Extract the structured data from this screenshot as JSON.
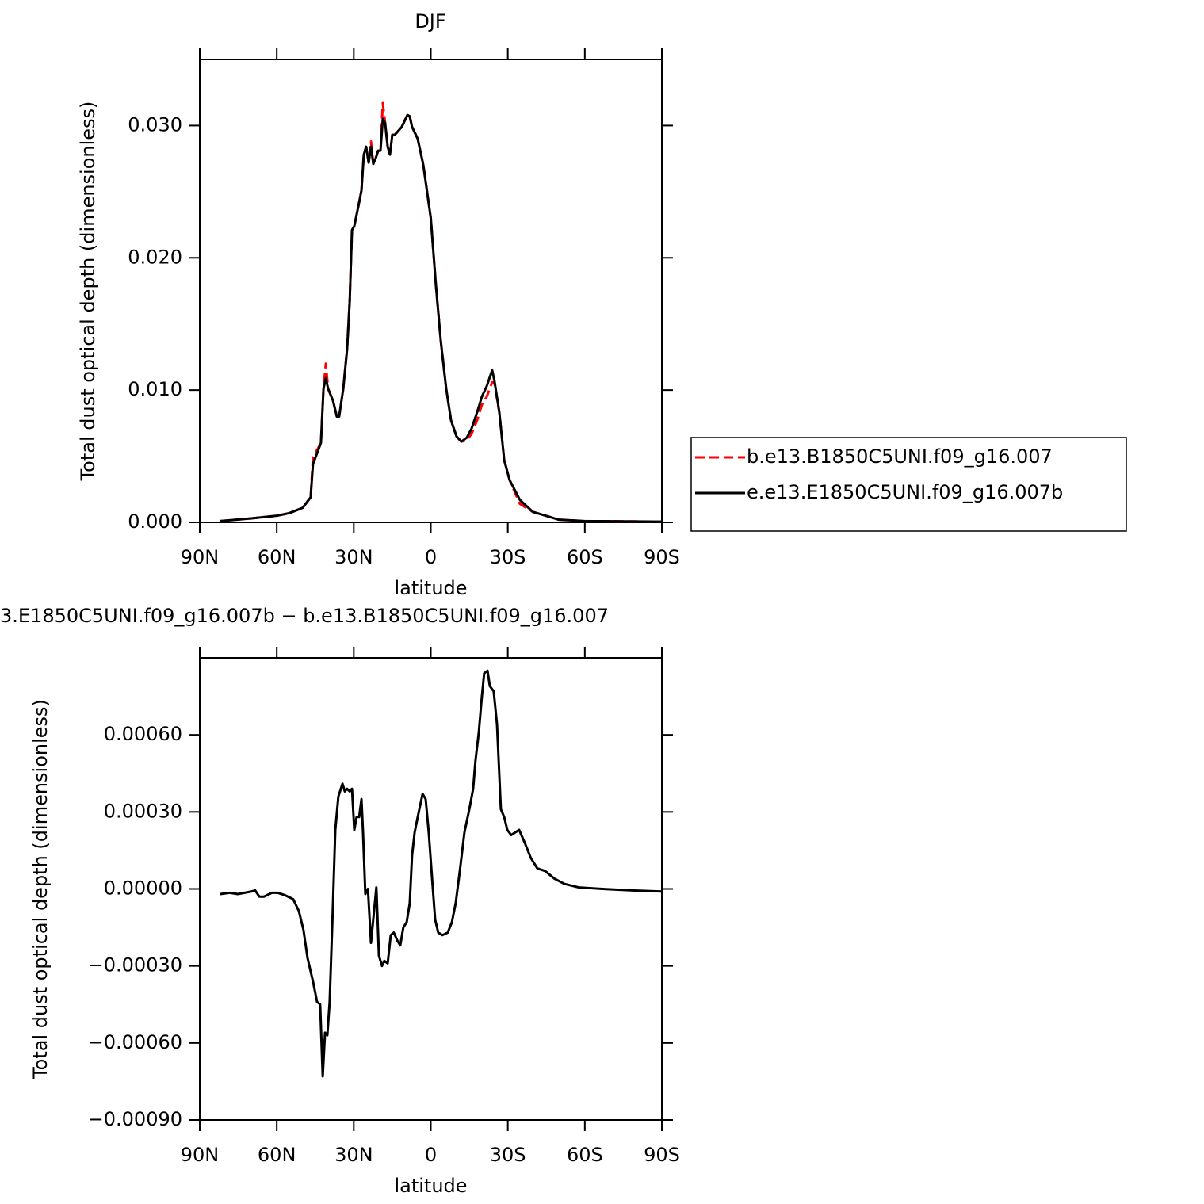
{
  "chart_data": [
    {
      "type": "line",
      "title": "DJF",
      "xlabel": "latitude",
      "ylabel": "Total dust optical depth (dimensionless)",
      "x": [
        82,
        69.9,
        60,
        55.1,
        49.9,
        46.8,
        45.9,
        42.8,
        41.8,
        40.9,
        40,
        38.1,
        36.6,
        35.7,
        34.1,
        32.6,
        31.6,
        30.7,
        29.8,
        27.9,
        27,
        26.1,
        25.2,
        24.2,
        23.3,
        22.4,
        21.5,
        20.5,
        19.6,
        18.7,
        17.8,
        16.8,
        15.9,
        15,
        14.1,
        13.1,
        11.3,
        9.1,
        8.2,
        7.3,
        5.1,
        2.9,
        0,
        -2,
        -3.9,
        -6,
        -7.9,
        -10,
        -11.9,
        -14,
        -15.9,
        -18,
        -19.9,
        -21.8,
        -23.9,
        -24.8,
        -26.7,
        -28.6,
        -30.7,
        -34.7,
        -39.7,
        -49.9,
        -60,
        -90
      ],
      "series": [
        {
          "name": "b.e13.B1850C5UNI.f09_g16.007",
          "color": "#ff0000",
          "dashed": true,
          "values": [
            0.0001,
            0.0003,
            0.0005,
            0.0007,
            0.0011,
            0.0019,
            0.0049,
            0.006,
            0.0101,
            0.012,
            0.0101,
            0.0092,
            0.008,
            0.008,
            0.0101,
            0.0131,
            0.0167,
            0.0221,
            0.0224,
            0.0242,
            0.0251,
            0.0278,
            0.0284,
            0.0272,
            0.0288,
            0.0271,
            0.0275,
            0.0281,
            0.0281,
            0.0317,
            0.0302,
            0.0284,
            0.0278,
            0.0293,
            0.0293,
            0.0295,
            0.0299,
            0.0308,
            0.0307,
            0.0299,
            0.029,
            0.027,
            0.023,
            0.0179,
            0.0137,
            0.0101,
            0.0077,
            0.0065,
            0.0061,
            0.0062,
            0.0067,
            0.0077,
            0.0089,
            0.0095,
            0.0106,
            0.0105,
            0.0083,
            0.0047,
            0.0032,
            0.0014,
            0.0008,
            0.0002,
            0.0001,
            5e-05
          ]
        },
        {
          "name": "e.e13.E1850C5UNI.f09_g16.007b",
          "color": "#000000",
          "dashed": false,
          "values": [
            0.0001,
            0.0003,
            0.0005,
            0.0007,
            0.0011,
            0.0019,
            0.0044,
            0.006,
            0.0101,
            0.0109,
            0.0101,
            0.0092,
            0.008,
            0.008,
            0.0101,
            0.0131,
            0.0167,
            0.0221,
            0.0224,
            0.0242,
            0.0251,
            0.0278,
            0.0284,
            0.0272,
            0.0284,
            0.0271,
            0.0275,
            0.0281,
            0.0281,
            0.0305,
            0.0302,
            0.0284,
            0.0278,
            0.0293,
            0.0293,
            0.0295,
            0.0299,
            0.0308,
            0.0307,
            0.0299,
            0.029,
            0.027,
            0.023,
            0.0179,
            0.0137,
            0.0101,
            0.0077,
            0.0065,
            0.0061,
            0.0064,
            0.0071,
            0.0083,
            0.0095,
            0.0103,
            0.0115,
            0.0107,
            0.0083,
            0.0047,
            0.0032,
            0.0017,
            0.0008,
            0.0002,
            0.0001,
            5e-05
          ]
        }
      ],
      "xlim": [
        90,
        -90
      ],
      "xticks": [
        {
          "value": 90,
          "label": "90N"
        },
        {
          "value": 60,
          "label": "60N"
        },
        {
          "value": 30,
          "label": "30N"
        },
        0,
        {
          "value": -30,
          "label": "30S"
        },
        {
          "value": -60,
          "label": "60S"
        },
        {
          "value": -90,
          "label": "90S"
        }
      ],
      "ylim": [
        0,
        0.035
      ],
      "yticks": [
        {
          "value": 0,
          "label": "0.000"
        },
        {
          "value": 0.01,
          "label": "0.010"
        },
        {
          "value": 0.02,
          "label": "0.020"
        },
        {
          "value": 0.03,
          "label": "0.030"
        }
      ],
      "legend": "right"
    },
    {
      "type": "line",
      "title": "3.E1850C5UNI.f09_g16.007b − b.e13.B1850C5UNI.f09_g16.007",
      "xlabel": "latitude",
      "ylabel": "Total dust optical depth (dimensionless)",
      "x": [
        82,
        78.3,
        75.2,
        69.9,
        68.4,
        66.8,
        65,
        61.9,
        59.7,
        56.7,
        53.6,
        51.4,
        49.6,
        48,
        45.9,
        44.3,
        43.1,
        42.1,
        41.2,
        40.3,
        39.4,
        38.1,
        37.2,
        36,
        34.4,
        33.5,
        32.6,
        31.6,
        30.7,
        29.8,
        28.9,
        27.9,
        27,
        26.4,
        25.5,
        24.5,
        23.3,
        22.1,
        21.2,
        20.2,
        19,
        18.1,
        16.8,
        15.6,
        14.4,
        13.1,
        11.9,
        10.7,
        9.4,
        8.2,
        7.3,
        6.3,
        5.1,
        3.2,
        2,
        0.8,
        -0.5,
        -1.7,
        -2.9,
        -4.5,
        -6.6,
        -8.2,
        -9.7,
        -11.3,
        -13.1,
        -15,
        -16.5,
        -17.4,
        -18.7,
        -19.9,
        -20.8,
        -22.1,
        -23,
        -24.5,
        -25.8,
        -27.3,
        -28.6,
        -29.8,
        -31.3,
        -32.9,
        -34.4,
        -36.6,
        -39,
        -41.5,
        -44.5,
        -48.2,
        -52,
        -57.6,
        -66.8,
        -79.2,
        -90
      ],
      "series": [
        {
          "color": "#000000",
          "dashed": false,
          "values": [
            -2e-05,
            -1.5e-05,
            -2e-05,
            -1e-05,
            -6e-06,
            -3e-05,
            -3e-05,
            -1.5e-05,
            -1.5e-05,
            -2.5e-05,
            -4e-05,
            -8.6e-05,
            -0.00016,
            -0.00027,
            -0.00036,
            -0.00044,
            -0.00045,
            -0.00073,
            -0.00056,
            -0.00057,
            -0.00044,
            -5.5e-05,
            0.00023,
            0.00036,
            0.00041,
            0.00038,
            0.00039,
            0.00038,
            0.00039,
            0.00023,
            0.00028,
            0.00028,
            0.00035,
            0.00022,
            -2e-05,
            0,
            -0.00021,
            -8.6e-05,
            6e-06,
            -0.00026,
            -0.0003,
            -0.00028,
            -0.00029,
            -0.00018,
            -0.00017,
            -0.0002,
            -0.00022,
            -0.00015,
            -0.00013,
            -5.5e-05,
            0.00013,
            0.00022,
            0.00028,
            0.00037,
            0.00035,
            0.00022,
            4e-05,
            -0.00012,
            -0.00017,
            -0.00018,
            -0.00017,
            -0.00013,
            -5.5e-05,
            7e-05,
            0.00022,
            0.00031,
            0.00039,
            0.0005,
            0.00061,
            0.00075,
            0.00084,
            0.00085,
            0.00079,
            0.00077,
            0.00064,
            0.00031,
            0.00028,
            0.00023,
            0.00021,
            0.00022,
            0.00023,
            0.00018,
            0.00012,
            8e-05,
            7e-05,
            4e-05,
            2e-05,
            6e-06,
            0,
            -6e-06,
            -1e-05
          ]
        }
      ],
      "xlim": [
        90,
        -90
      ],
      "xticks": [
        {
          "value": 90,
          "label": "90N"
        },
        {
          "value": 60,
          "label": "60N"
        },
        {
          "value": 30,
          "label": "30N"
        },
        0,
        {
          "value": -30,
          "label": "30S"
        },
        {
          "value": -60,
          "label": "60S"
        },
        {
          "value": -90,
          "label": "90S"
        }
      ],
      "ylim": [
        -0.0009,
        0.0009
      ],
      "yticks": [
        {
          "value": -0.0009,
          "label": "−0.00090"
        },
        {
          "value": -0.0006,
          "label": "−0.00060"
        },
        {
          "value": -0.0003,
          "label": "−0.00030"
        },
        {
          "value": 0,
          "label": "0.00000"
        },
        {
          "value": 0.0003,
          "label": "0.00030"
        },
        {
          "value": 0.0006,
          "label": "0.00060"
        }
      ]
    }
  ]
}
